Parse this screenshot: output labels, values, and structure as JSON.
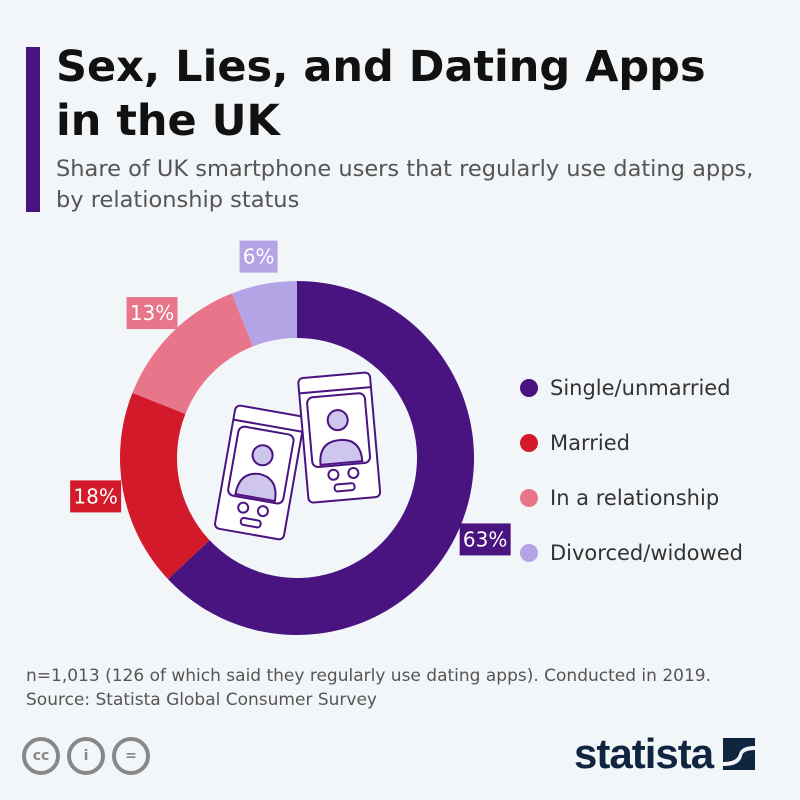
{
  "header": {
    "title_line1": "Sex, Lies, and Dating Apps",
    "title_line2": "in the UK",
    "subtitle": "Share of UK smartphone users that regularly use dating apps, by relationship status"
  },
  "chart_data": {
    "type": "pie",
    "donut": true,
    "categories": [
      "Single/unmarried",
      "Married",
      "In a relationship",
      "Divorced/widowed"
    ],
    "values": [
      63,
      18,
      13,
      6
    ],
    "labels": [
      "63%",
      "18%",
      "13%",
      "6%"
    ],
    "colors": [
      "#4a1480",
      "#d31a2a",
      "#e8758a",
      "#b3a4e6"
    ],
    "legend_placement": "right",
    "center_icon": "dating-app-phones-icon"
  },
  "footer": {
    "note": "n=1,013 (126 of which said they regularly use dating apps). Conducted in 2019.",
    "source": "Source: Statista Global Consumer Survey",
    "brand": "statista",
    "license_icons": [
      "cc-icon",
      "by-icon",
      "nd-icon"
    ]
  }
}
